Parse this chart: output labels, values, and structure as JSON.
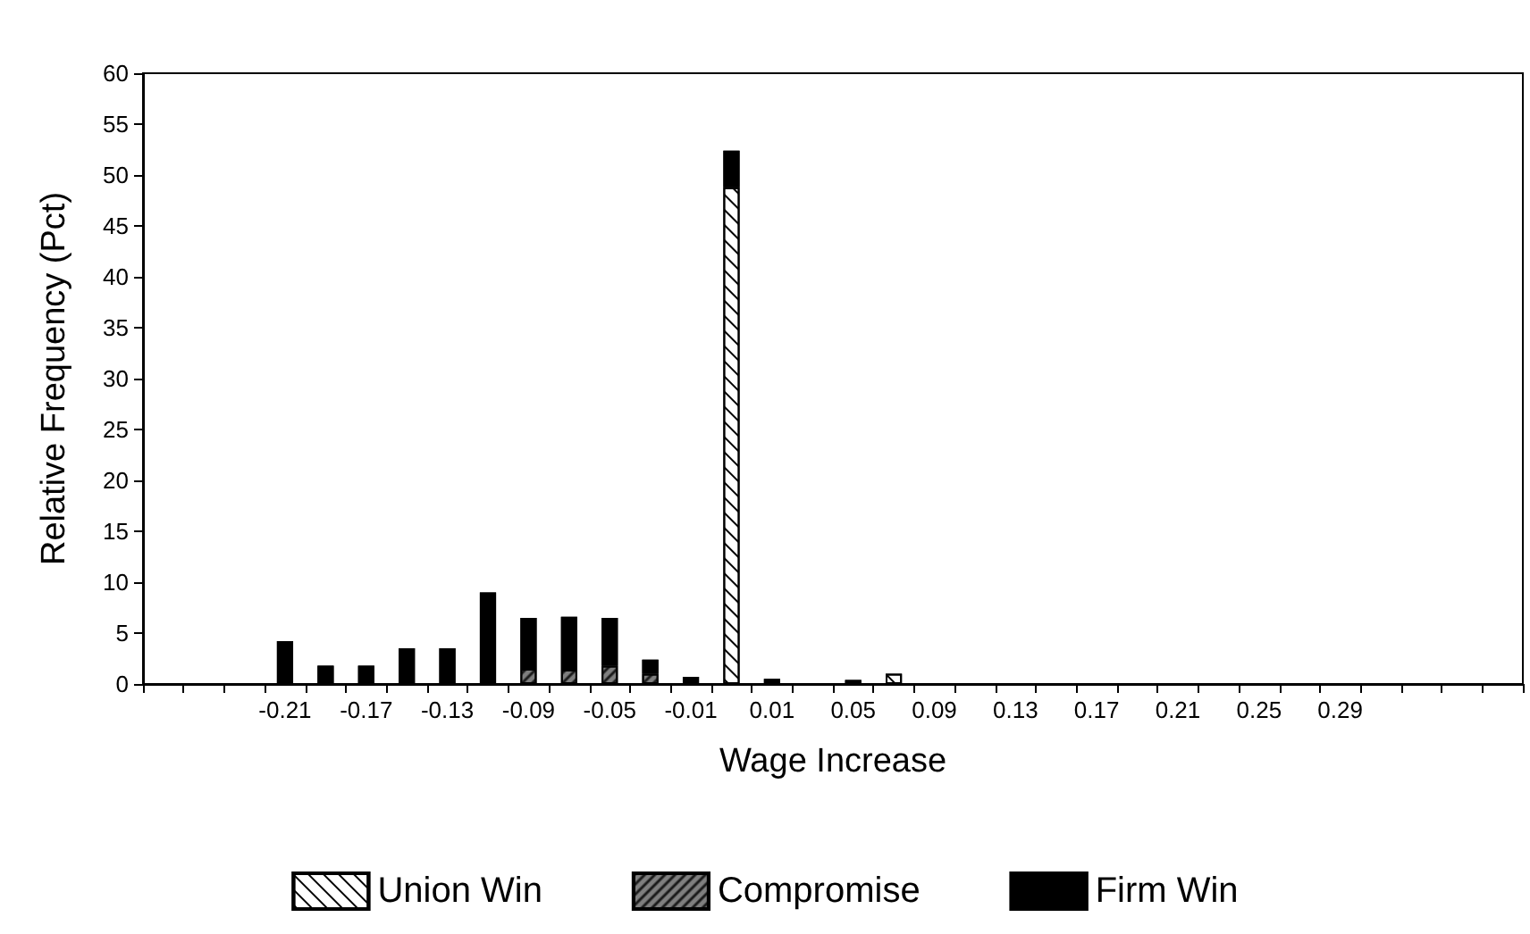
{
  "chart_data": {
    "type": "bar",
    "stacked": true,
    "xlabel": "Wage Increase",
    "ylabel": "Relative Frequency (Pct)",
    "categories": [
      null,
      null,
      null,
      "-0.21",
      null,
      "-0.17",
      null,
      "-0.13",
      null,
      "-0.09",
      null,
      "-0.05",
      null,
      "-0.01",
      null,
      "0.01",
      null,
      "0.05",
      null,
      "0.09",
      null,
      "0.13",
      null,
      "0.17",
      null,
      "0.21",
      null,
      "0.25",
      null,
      "0.29",
      null,
      null,
      null,
      null
    ],
    "series": [
      {
        "name": "Union Win",
        "color": "#ffffff",
        "values": [
          null,
          null,
          null,
          null,
          null,
          null,
          null,
          null,
          null,
          null,
          null,
          null,
          null,
          null,
          48.8,
          null,
          null,
          null,
          1.0,
          null,
          null,
          null,
          null,
          null,
          null,
          null,
          null,
          null,
          null,
          null,
          null,
          null,
          null,
          null
        ]
      },
      {
        "name": "Compromise",
        "color": "#7f7f7f",
        "values": [
          null,
          null,
          null,
          null,
          null,
          null,
          null,
          null,
          null,
          1.5,
          1.4,
          1.8,
          1.0,
          null,
          null,
          null,
          null,
          null,
          null,
          null,
          null,
          null,
          null,
          null,
          null,
          null,
          null,
          null,
          null,
          null,
          null,
          null,
          null,
          null
        ]
      },
      {
        "name": "Firm Win",
        "color": "#000000",
        "values": [
          null,
          null,
          null,
          4.2,
          1.8,
          1.8,
          3.5,
          3.5,
          9.0,
          5.0,
          5.2,
          4.7,
          1.4,
          0.7,
          3.6,
          0.5,
          null,
          0.4,
          null,
          null,
          null,
          null,
          null,
          null,
          null,
          null,
          null,
          null,
          null,
          null,
          null,
          null,
          null,
          null
        ]
      }
    ],
    "ylim": [
      0,
      60
    ],
    "yticks": [
      0,
      5,
      10,
      15,
      20,
      25,
      30,
      35,
      40,
      45,
      50,
      55,
      60
    ],
    "grid": false,
    "legend": "bottom"
  }
}
